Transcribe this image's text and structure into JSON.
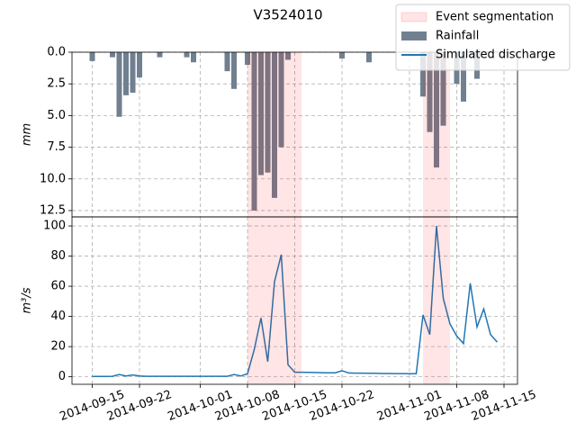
{
  "chart_data": [
    {
      "type": "bar",
      "title": "V3524010",
      "ylabel": "mm",
      "y_inverted": true,
      "ylim": [
        0,
        13
      ],
      "yticks": [
        {
          "value": 0,
          "label": "0.0"
        },
        2.5,
        {
          "value": 5,
          "label": "5.0"
        },
        7.5,
        {
          "value": 10,
          "label": "10.0"
        },
        12.5
      ],
      "xlim": [
        "2014-09-12",
        "2014-11-17"
      ],
      "grid": true,
      "legend": "upper right",
      "spans": {
        "name": "Event segmentation",
        "color": "#ff0000",
        "ranges": [
          [
            "2014-10-08",
            "2014-10-16"
          ],
          [
            "2014-11-03",
            "2014-11-07"
          ]
        ]
      },
      "series": [
        {
          "name": "Rainfall",
          "color": "#708090",
          "x": [
            "2014-09-15",
            "2014-09-18",
            "2014-09-19",
            "2014-09-20",
            "2014-09-21",
            "2014-09-22",
            "2014-09-25",
            "2014-09-29",
            "2014-09-30",
            "2014-10-05",
            "2014-10-06",
            "2014-10-08",
            "2014-10-09",
            "2014-10-10",
            "2014-10-11",
            "2014-10-12",
            "2014-10-13",
            "2014-10-14",
            "2014-10-22",
            "2014-10-26",
            "2014-11-03",
            "2014-11-04",
            "2014-11-05",
            "2014-11-06",
            "2014-11-08",
            "2014-11-09",
            "2014-11-11"
          ],
          "values": [
            0.7,
            0.4,
            5.1,
            3.4,
            3.2,
            2.0,
            0.4,
            0.4,
            0.8,
            1.5,
            2.9,
            1.0,
            12.5,
            9.7,
            9.5,
            11.5,
            7.5,
            0.6,
            0.5,
            0.8,
            3.5,
            6.3,
            9.1,
            5.8,
            2.5,
            3.9,
            2.1
          ]
        }
      ]
    },
    {
      "type": "line",
      "ylabel": "m³/s",
      "ylim": [
        -5,
        106
      ],
      "yticks": [
        0,
        20,
        40,
        60,
        80,
        100
      ],
      "xlim": [
        "2014-09-12",
        "2014-11-17"
      ],
      "xticks": [
        "2014-09-15",
        "2014-09-22",
        "2014-10-01",
        "2014-10-08",
        "2014-10-15",
        "2014-10-22",
        "2014-11-01",
        "2014-11-08",
        "2014-11-15"
      ],
      "grid": true,
      "x": [
        "2014-09-15",
        "2014-09-16",
        "2014-09-17",
        "2014-09-18",
        "2014-09-19",
        "2014-09-20",
        "2014-09-21",
        "2014-09-22",
        "2014-09-23",
        "2014-09-24",
        "2014-09-25",
        "2014-09-26",
        "2014-09-27",
        "2014-09-28",
        "2014-09-29",
        "2014-09-30",
        "2014-10-01",
        "2014-10-02",
        "2014-10-03",
        "2014-10-04",
        "2014-10-05",
        "2014-10-06",
        "2014-10-07",
        "2014-10-08",
        "2014-10-09",
        "2014-10-10",
        "2014-10-11",
        "2014-10-12",
        "2014-10-13",
        "2014-10-14",
        "2014-10-15",
        "2014-10-16",
        "2014-10-17",
        "2014-10-18",
        "2014-10-19",
        "2014-10-20",
        "2014-10-21",
        "2014-10-22",
        "2014-10-23",
        "2014-10-24",
        "2014-10-25",
        "2014-10-26",
        "2014-10-27",
        "2014-10-28",
        "2014-10-29",
        "2014-10-30",
        "2014-10-31",
        "2014-11-01",
        "2014-11-02",
        "2014-11-03",
        "2014-11-04",
        "2014-11-05",
        "2014-11-06",
        "2014-11-07",
        "2014-11-08",
        "2014-11-09",
        "2014-11-10",
        "2014-11-11",
        "2014-11-12",
        "2014-11-13",
        "2014-11-14"
      ],
      "series": [
        {
          "name": "Simulated discharge",
          "color": "#1f77b4",
          "values": [
            0.2,
            0.2,
            0.2,
            0.3,
            1.5,
            0.5,
            1.2,
            0.5,
            0.3,
            0.3,
            0.3,
            0.3,
            0.3,
            0.3,
            0.3,
            0.3,
            0.3,
            0.3,
            0.3,
            0.3,
            0.3,
            1.5,
            0.5,
            2,
            18,
            39,
            10,
            63,
            81,
            8,
            3,
            3,
            2.9,
            2.8,
            2.7,
            2.6,
            2.6,
            4,
            2.5,
            2.4,
            2.4,
            2.3,
            2.3,
            2.2,
            2.2,
            2.1,
            2.1,
            2,
            2,
            41,
            28,
            100,
            52,
            35,
            27,
            22,
            62,
            33,
            45,
            28,
            23
          ]
        }
      ]
    }
  ]
}
